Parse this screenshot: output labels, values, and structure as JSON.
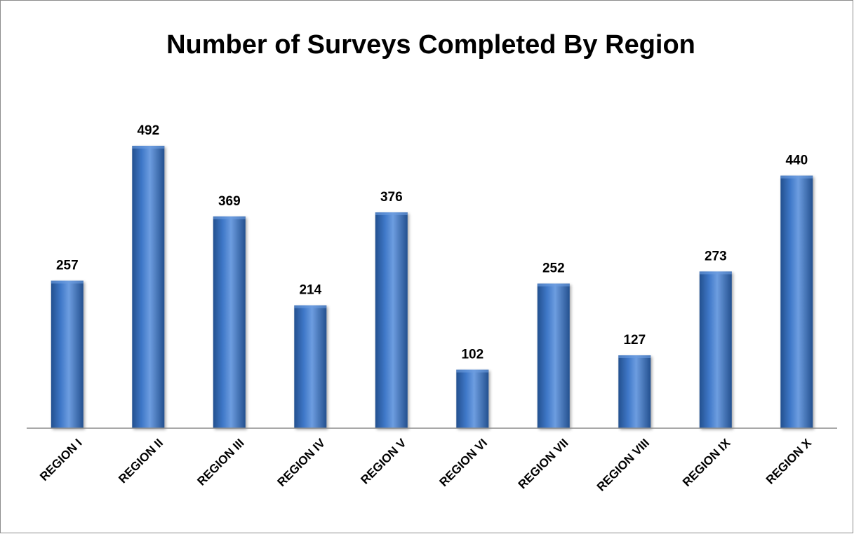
{
  "chart_data": {
    "type": "bar",
    "title": "Number of Surveys Completed By Region",
    "xlabel": "",
    "ylabel": "",
    "categories": [
      "REGION I",
      "REGION II",
      "REGION III",
      "REGION IV",
      "REGION V",
      "REGION VI",
      "REGION VII",
      "REGION VIII",
      "REGION IX",
      "REGION X"
    ],
    "values": [
      257,
      492,
      369,
      214,
      376,
      102,
      252,
      127,
      273,
      440
    ],
    "ylim": [
      0,
      500
    ],
    "grid": false,
    "legend": "none",
    "data_labels": true,
    "bar_color": "#3f78c8",
    "bar_color_dark": "#23508f",
    "bar_color_light": "#6d9de0",
    "axis_color": "#8c8c8c"
  }
}
